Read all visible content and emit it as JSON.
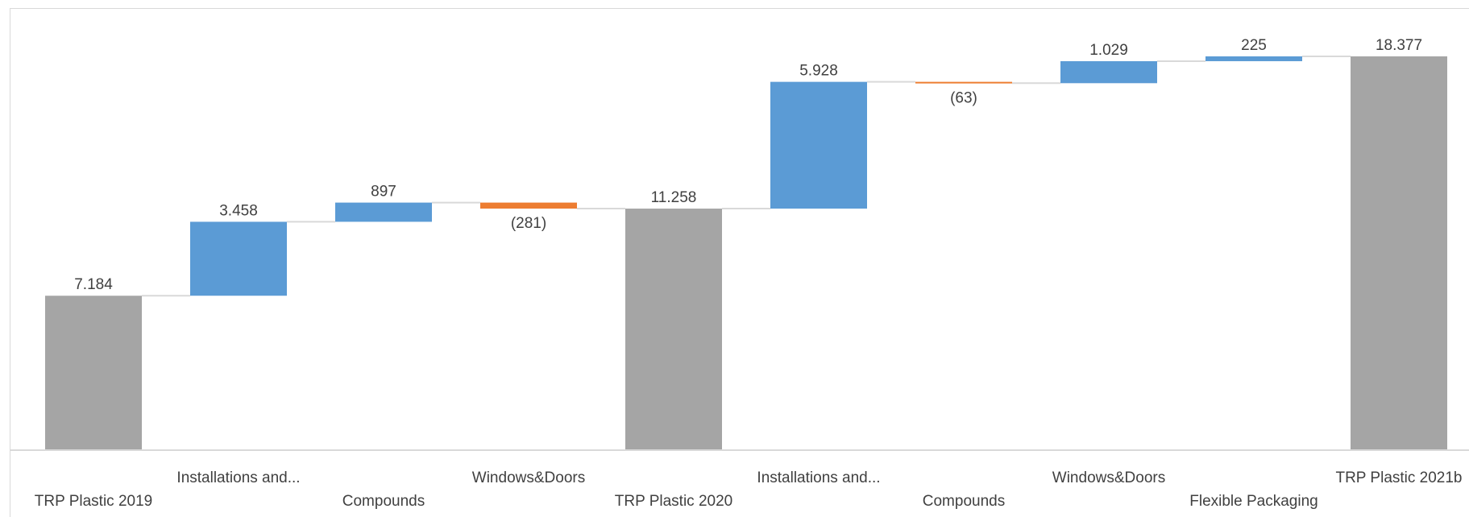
{
  "chart_data": {
    "type": "waterfall",
    "title": "",
    "xlabel": "",
    "ylabel": "",
    "ylim": [
      0,
      20000
    ],
    "grid": false,
    "legend": "none",
    "colors": {
      "increase": "#5b9bd5",
      "decrease": "#ed7d31",
      "total": "#a5a5a5",
      "connector": "#d9d9d9",
      "axis": "#d9d9d9"
    },
    "steps": [
      {
        "category": "TRP Plastic 2019",
        "kind": "total",
        "value": 7184,
        "label": "7.184"
      },
      {
        "category": "Installations and...",
        "kind": "increase",
        "value": 3458,
        "label": "3.458"
      },
      {
        "category": "Compounds",
        "kind": "increase",
        "value": 897,
        "label": "897"
      },
      {
        "category": "Windows&Doors",
        "kind": "decrease",
        "value": -281,
        "label": "(281)"
      },
      {
        "category": "TRP Plastic 2020",
        "kind": "total",
        "value": 11258,
        "label": "11.258"
      },
      {
        "category": "Installations and...",
        "kind": "increase",
        "value": 5928,
        "label": "5.928"
      },
      {
        "category": "Compounds",
        "kind": "decrease",
        "value": -63,
        "label": "(63)"
      },
      {
        "category": "Windows&Doors",
        "kind": "increase",
        "value": 1029,
        "label": "1.029"
      },
      {
        "category": "Flexible Packaging",
        "kind": "increase",
        "value": 225,
        "label": "225"
      },
      {
        "category": "TRP Plastic 2021b",
        "kind": "total",
        "value": 18377,
        "label": "18.377"
      }
    ]
  }
}
